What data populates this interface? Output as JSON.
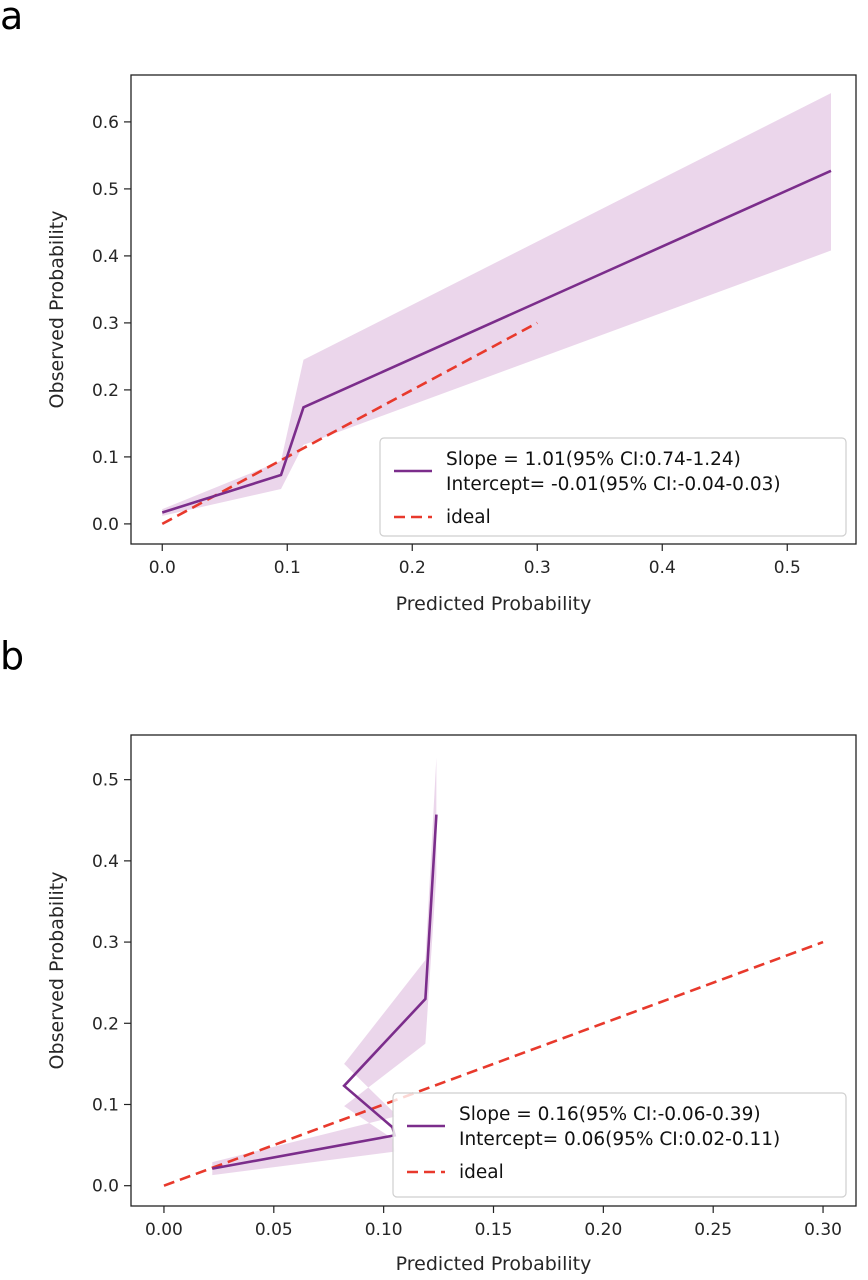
{
  "chart_data": [
    {
      "panel": "a",
      "type": "line",
      "xlabel": "Predicted Probability",
      "ylabel": "Observed Probability",
      "xlim": [
        -0.025,
        0.555
      ],
      "ylim": [
        -0.03,
        0.67
      ],
      "xticks": [
        0.0,
        0.1,
        0.2,
        0.3,
        0.4,
        0.5
      ],
      "xtick_labels": [
        "0.0",
        "0.1",
        "0.2",
        "0.3",
        "0.4",
        "0.5"
      ],
      "yticks": [
        0.0,
        0.1,
        0.2,
        0.3,
        0.4,
        0.5,
        0.6
      ],
      "ytick_labels": [
        "0.0",
        "0.1",
        "0.2",
        "0.3",
        "0.4",
        "0.5",
        "0.6"
      ],
      "grid": false,
      "legend_position": "lower-right",
      "colors": {
        "calibration": "#7b2d8b",
        "ci_band": "#e7cfe8",
        "ideal": "#e8392c"
      },
      "series": [
        {
          "name": "Slope = 1.01(95% CI:0.74-1.24)\nIntercept= -0.01(95% CI:-0.04-0.03)",
          "legend_lines": [
            "Slope = 1.01(95% CI:0.74-1.24)",
            "Intercept= -0.01(95% CI:-0.04-0.03)"
          ],
          "style": "solid",
          "x": [
            0.0,
            0.095,
            0.113,
            0.535
          ],
          "y": [
            0.017,
            0.073,
            0.174,
            0.527
          ],
          "ci_lower": [
            0.012,
            0.052,
            0.118,
            0.408
          ],
          "ci_upper": [
            0.022,
            0.094,
            0.245,
            0.643
          ]
        },
        {
          "name": "ideal",
          "legend_lines": [
            "ideal"
          ],
          "style": "dashed",
          "x": [
            0.0,
            0.3
          ],
          "y": [
            0.0,
            0.3
          ]
        }
      ]
    },
    {
      "panel": "b",
      "type": "line",
      "xlabel": "Predicted Probability",
      "ylabel": "Observed Probability",
      "xlim": [
        -0.015,
        0.315
      ],
      "ylim": [
        -0.025,
        0.555
      ],
      "xticks": [
        0.0,
        0.05,
        0.1,
        0.15,
        0.2,
        0.25,
        0.3
      ],
      "xtick_labels": [
        "0.00",
        "0.05",
        "0.10",
        "0.15",
        "0.20",
        "0.25",
        "0.30"
      ],
      "yticks": [
        0.0,
        0.1,
        0.2,
        0.3,
        0.4,
        0.5
      ],
      "ytick_labels": [
        "0.0",
        "0.1",
        "0.2",
        "0.3",
        "0.4",
        "0.5"
      ],
      "grid": false,
      "legend_position": "lower-right",
      "colors": {
        "calibration": "#7b2d8b",
        "ci_band": "#e7cfe8",
        "ideal": "#e8392c"
      },
      "series": [
        {
          "name": "Slope = 0.16(95% CI:-0.06-0.39)\nIntercept= 0.06(95% CI:0.02-0.11)",
          "legend_lines": [
            "Slope = 0.16(95% CI:-0.06-0.39)",
            "Intercept= 0.06(95% CI:0.02-0.11)"
          ],
          "style": "solid",
          "x": [
            0.022,
            0.105,
            0.104,
            0.082,
            0.119,
            0.124
          ],
          "y": [
            0.021,
            0.062,
            0.072,
            0.123,
            0.23,
            0.457
          ],
          "ci_lower": [
            0.013,
            0.042,
            0.058,
            0.098,
            0.175,
            0.382
          ],
          "ci_upper": [
            0.029,
            0.085,
            0.092,
            0.15,
            0.278,
            0.527
          ]
        },
        {
          "name": "ideal",
          "legend_lines": [
            "ideal"
          ],
          "style": "dashed",
          "x": [
            0.0,
            0.3
          ],
          "y": [
            0.0,
            0.3
          ]
        }
      ]
    }
  ],
  "panels": [
    {
      "letter": "a"
    },
    {
      "letter": "b"
    }
  ]
}
